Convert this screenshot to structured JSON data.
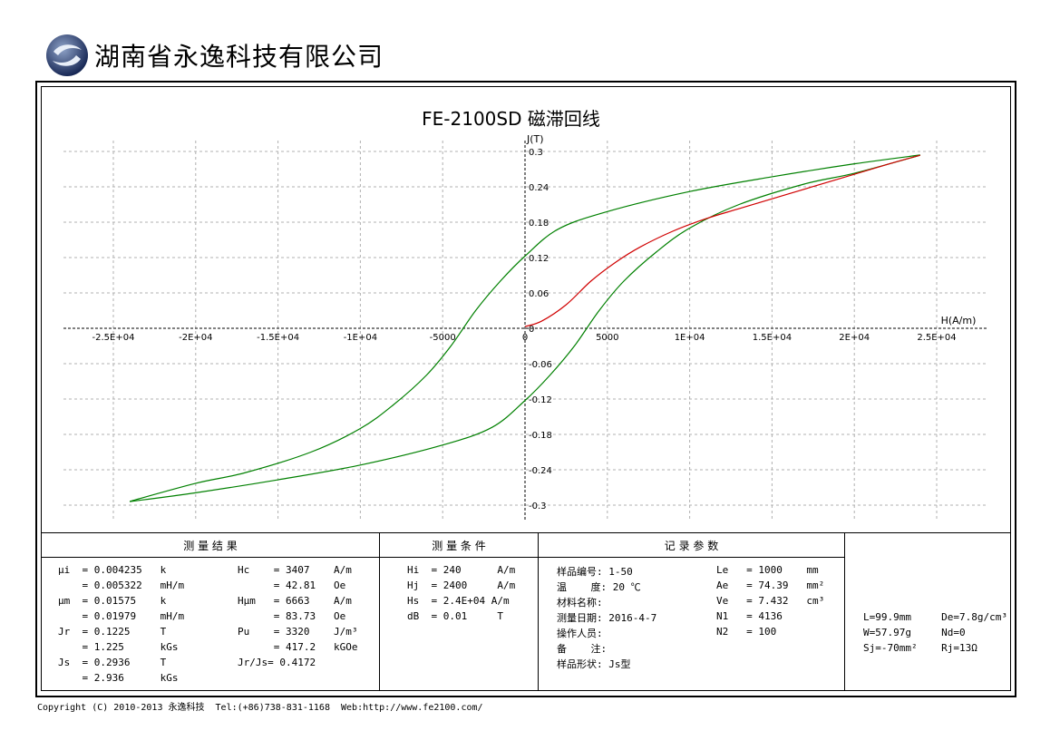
{
  "header": {
    "company": "湖南省永逸科技有限公司"
  },
  "chart_title": "FE-2100SD 磁滞回线",
  "chart_data": {
    "type": "line",
    "xlabel": "H(A/m)",
    "ylabel": "J(T)",
    "xlim": [
      -28000,
      28000
    ],
    "ylim": [
      -0.32,
      0.32
    ],
    "x_ticks": [
      -25000,
      -20000,
      -15000,
      -10000,
      -5000,
      0,
      5000,
      10000,
      15000,
      20000,
      25000
    ],
    "x_tick_labels": [
      "-2.5E+04",
      "-2E+04",
      "-1.5E+04",
      "-1E+04",
      "-5000",
      "0",
      "5000",
      "1E+04",
      "1.5E+04",
      "2E+04",
      "2.5E+04"
    ],
    "y_ticks": [
      0.3,
      0.24,
      0.18,
      0.12,
      0.06,
      0,
      -0.06,
      -0.12,
      -0.18,
      -0.24,
      -0.3
    ],
    "y_tick_labels": [
      "0.3",
      "0.24",
      "0.18",
      "0.12",
      "0.06",
      "0",
      "-0.06",
      "-0.12",
      "-0.18",
      "-0.24",
      "-0.3"
    ],
    "grid": true,
    "series": [
      {
        "color": "#008000",
        "x": [
          24000,
          20000,
          15000,
          10000,
          5000,
          2000,
          0,
          -1500,
          -3000,
          -4500,
          -6000,
          -8000,
          -10000,
          -13000,
          -17000,
          -20000,
          -24000
        ],
        "y": [
          0.294,
          0.279,
          0.257,
          0.232,
          0.198,
          0.168,
          0.1225,
          0.08,
          0.03,
          -0.03,
          -0.08,
          -0.13,
          -0.17,
          -0.21,
          -0.245,
          -0.263,
          -0.2936
        ]
      },
      {
        "color": "#008000",
        "x": [
          -24000,
          -20000,
          -15000,
          -10000,
          -5000,
          -2000,
          0,
          1500,
          3000,
          4500,
          6000,
          8000,
          10000,
          13000,
          17000,
          20000,
          24000
        ],
        "y": [
          -0.294,
          -0.279,
          -0.257,
          -0.232,
          -0.198,
          -0.168,
          -0.1225,
          -0.08,
          -0.03,
          0.03,
          0.08,
          0.13,
          0.17,
          0.21,
          0.245,
          0.263,
          0.2936
        ]
      },
      {
        "color": "#d00000",
        "x": [
          0,
          1000,
          2500,
          4000,
          5500,
          7000,
          9000,
          11000,
          13000,
          16000,
          19000,
          22000,
          24000
        ],
        "y": [
          0.003,
          0.012,
          0.04,
          0.08,
          0.112,
          0.138,
          0.165,
          0.186,
          0.203,
          0.228,
          0.253,
          0.278,
          0.2936
        ]
      }
    ]
  },
  "panels": {
    "results": {
      "title": "测      量      结      果",
      "rows": [
        "μi  = 0.004235   k",
        "    = 0.005322   mH/m",
        "μm  = 0.01575    k",
        "    = 0.01979    mH/m",
        "Jr  = 0.1225     T",
        "    = 1.225      kGs",
        "Js  = 0.2936     T",
        "    = 2.936      kGs"
      ],
      "rows2": [
        "Hc    = 3407    A/m",
        "      = 42.81   Oe",
        "Hμm   = 6663    A/m",
        "      = 83.73   Oe",
        "Pu    = 3320    J/m³",
        "      = 417.2   kGOe",
        "Jr/Js= 0.4172",
        ""
      ]
    },
    "conditions": {
      "title": "测    量    条    件",
      "rows": [
        "Hi  = 240      A/m",
        "Hj  = 2400     A/m",
        "Hs  = 2.4E+04 A/m",
        "dB  = 0.01     T"
      ]
    },
    "record": {
      "title": "记      录      参      数",
      "rows": [
        "样品编号: 1-50",
        "温    度: 20 ℃",
        "材料名称:",
        "测量日期: 2016-4-7",
        "操作人员:",
        "备    注:",
        "样品形状: Js型"
      ],
      "rows2": [
        "Le   = 1000    mm",
        "Ae   = 74.39   mm²",
        "Ve   = 7.432   cm³",
        "N1   = 4136",
        "N2   = 100",
        "",
        ""
      ]
    },
    "sample": {
      "rows": [
        "L=99.9mm     De=7.8g/cm³",
        "W=57.97g     Nd=0",
        "Sj=-70mm²    Rj=13Ω"
      ]
    }
  },
  "footer": {
    "copyright": "Copyright (C) 2010-2013 永逸科技  Tel:(+86)738-831-1168  Web:http://www.fe2100.com/"
  }
}
